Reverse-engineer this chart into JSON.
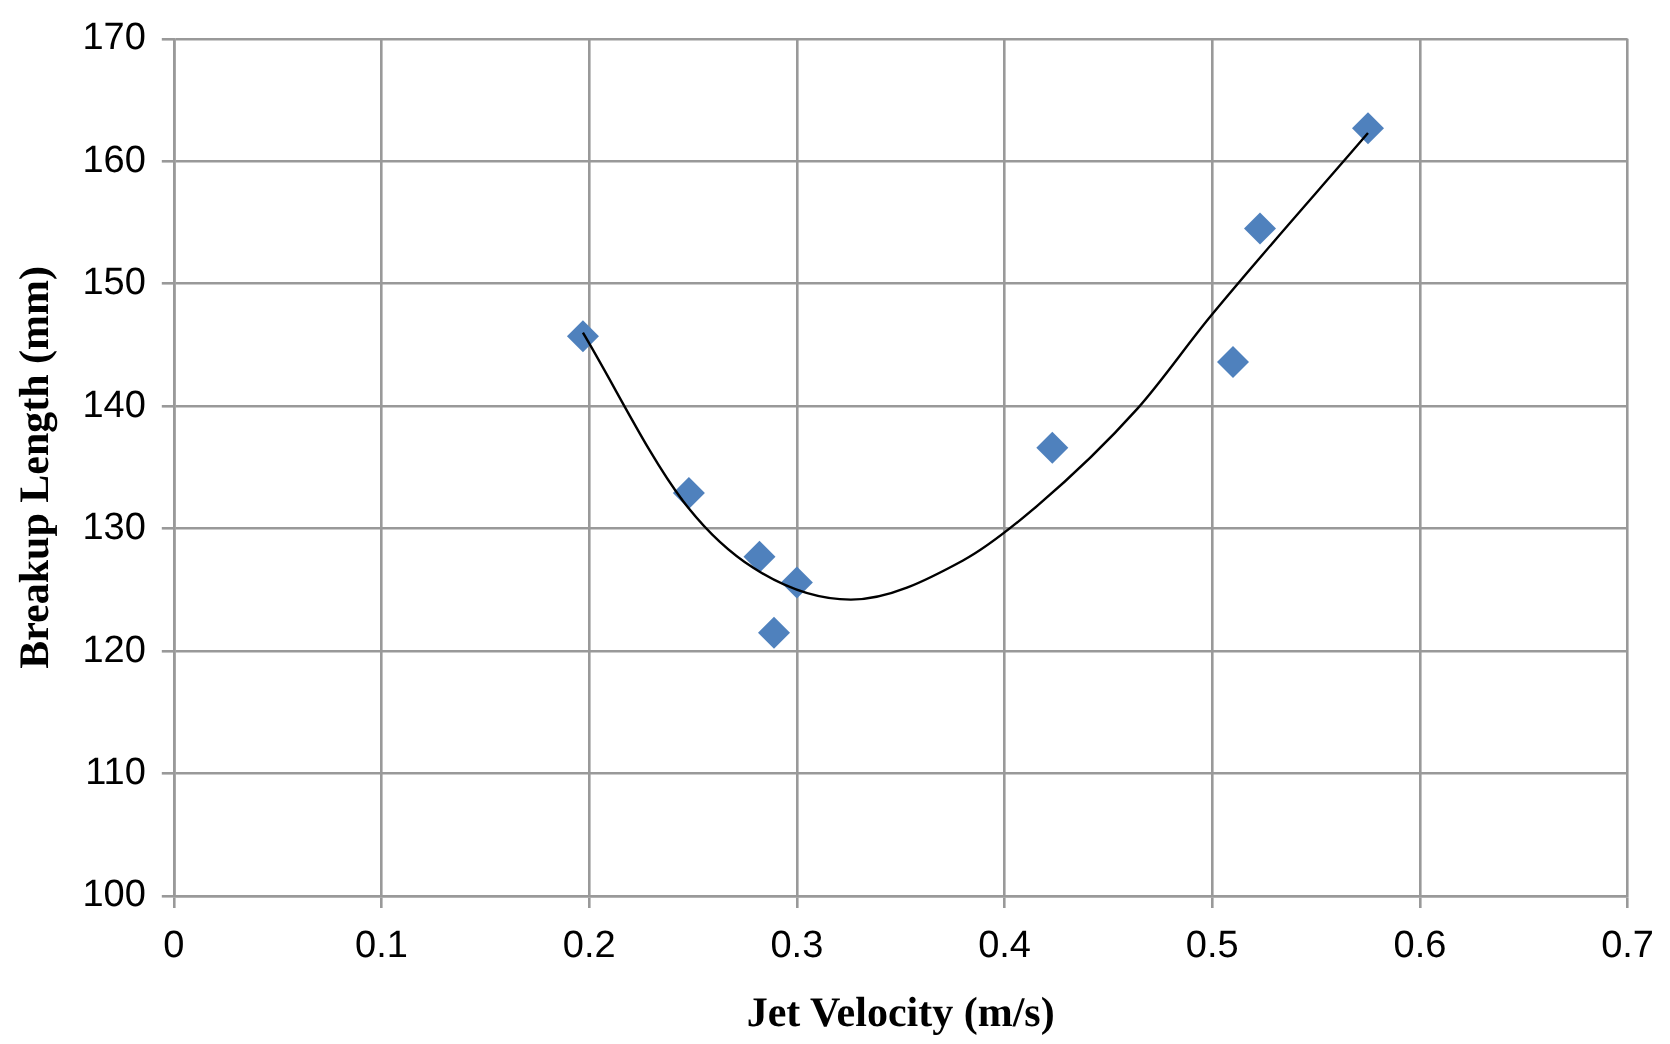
{
  "chart_data": {
    "type": "scatter",
    "xlabel": "Jet Velocity (m/s)",
    "ylabel": "Breakup Length (mm)",
    "xlim": [
      0,
      0.7
    ],
    "xticks": [
      0,
      0.1,
      0.2,
      0.3,
      0.4,
      0.5,
      0.6,
      0.7
    ],
    "ylim": [
      100,
      170
    ],
    "yticks": [
      100,
      110,
      120,
      130,
      140,
      150,
      160,
      170
    ],
    "grid": true,
    "legend": false,
    "marker": "diamond",
    "series": [
      {
        "type": "scatter",
        "color": "#4f81bd",
        "x": [
          0.197,
          0.248,
          0.282,
          0.289,
          0.3,
          0.423,
          0.51,
          0.523,
          0.575
        ],
        "values": [
          145.7,
          132.9,
          127.7,
          121.5,
          125.6,
          136.6,
          143.6,
          154.5,
          162.7
        ]
      },
      {
        "type": "line",
        "color": "#000000",
        "marker": "none",
        "x": [
          0.197,
          0.245,
          0.279,
          0.326,
          0.38,
          0.416,
          0.464,
          0.499,
          0.575
        ],
        "values": [
          146,
          132.3,
          126.8,
          124.2,
          127.4,
          131.9,
          139.8,
          147.3,
          162.3
        ]
      }
    ]
  }
}
